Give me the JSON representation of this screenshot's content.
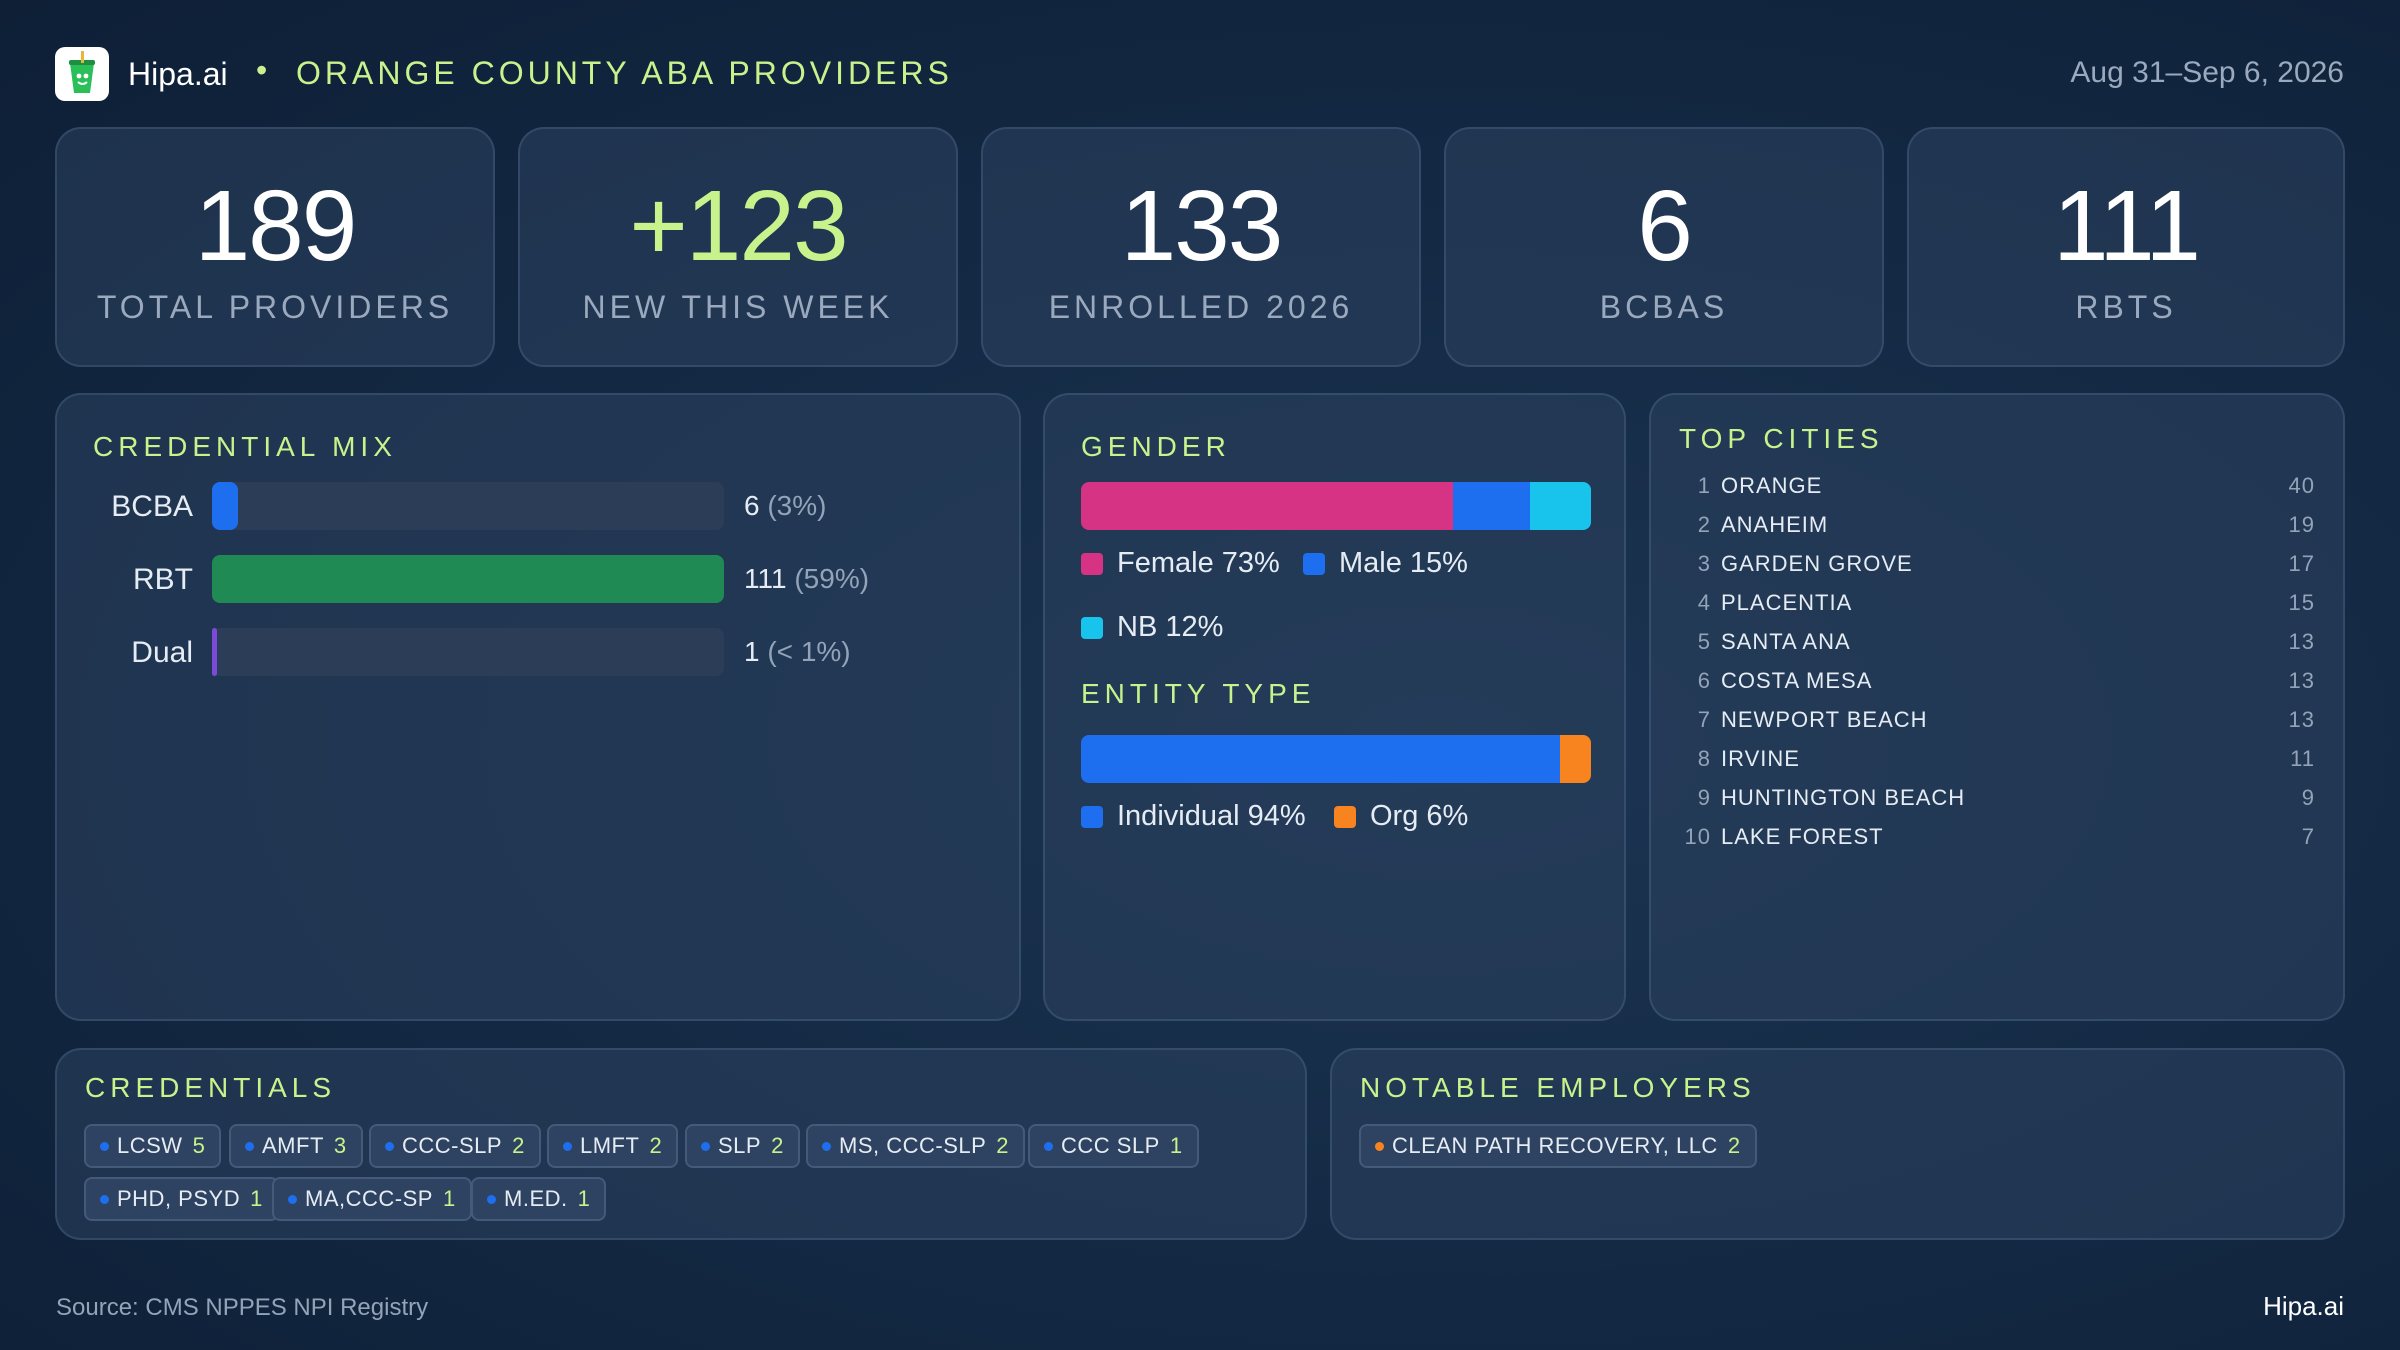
{
  "header": {
    "brand": "Hipa.ai",
    "separator": "•",
    "title": "ORANGE COUNTY ABA PROVIDERS",
    "date_range": "Aug 31–Sep 6, 2026"
  },
  "kpis": [
    {
      "value": "189",
      "label": "TOTAL  PROVIDERS"
    },
    {
      "value": "+123",
      "label": "NEW THIS WEEK"
    },
    {
      "value": "133",
      "label": "ENROLLED 2026"
    },
    {
      "value": "6",
      "label": "BCBAS"
    },
    {
      "value": "111",
      "label": "RBTS"
    }
  ],
  "credential_mix": {
    "title": "CREDENTIAL MIX",
    "rows": [
      {
        "label": "BCBA",
        "count": "6",
        "pct": "(3%)",
        "fraction": 0.05,
        "color": "#1e6ff0"
      },
      {
        "label": "RBT",
        "count": "111",
        "pct": "(59%)",
        "fraction": 1.0,
        "color": "#1f8a54"
      },
      {
        "label": "Dual",
        "count": "1",
        "pct": "(< 1%)",
        "fraction": 0.01,
        "color": "#7b4ad9"
      }
    ]
  },
  "gender": {
    "title": "GENDER",
    "segments": [
      {
        "label": "Female 73%",
        "value": 73,
        "color": "#d63384"
      },
      {
        "label": "Male 15%",
        "value": 15,
        "color": "#1e6ff0"
      },
      {
        "label": "NB 12%",
        "value": 12,
        "color": "#18c4eb"
      }
    ]
  },
  "entity_type": {
    "title": "ENTITY TYPE",
    "segments": [
      {
        "label": "Individual 94%",
        "value": 94,
        "color": "#1e6ff0"
      },
      {
        "label": "Org 6%",
        "value": 6,
        "color": "#f7841e"
      }
    ]
  },
  "top_cities": {
    "title": "TOP CITIES",
    "rows": [
      {
        "rank": "1",
        "name": "ORANGE",
        "count": "40"
      },
      {
        "rank": "2",
        "name": "ANAHEIM",
        "count": "19"
      },
      {
        "rank": "3",
        "name": "GARDEN GROVE",
        "count": "17"
      },
      {
        "rank": "4",
        "name": "PLACENTIA",
        "count": "15"
      },
      {
        "rank": "5",
        "name": "SANTA ANA",
        "count": "13"
      },
      {
        "rank": "6",
        "name": "COSTA MESA",
        "count": "13"
      },
      {
        "rank": "7",
        "name": "NEWPORT BEACH",
        "count": "13"
      },
      {
        "rank": "8",
        "name": "IRVINE",
        "count": "11"
      },
      {
        "rank": "9",
        "name": "HUNTINGTON BEACH",
        "count": "9"
      },
      {
        "rank": "10",
        "name": "LAKE FOREST",
        "count": "7"
      }
    ]
  },
  "credentials": {
    "title": "CREDENTIALS",
    "dot_color": "#1e6ff0",
    "chips": [
      {
        "label": "LCSW",
        "count": "5"
      },
      {
        "label": "AMFT",
        "count": "3"
      },
      {
        "label": "CCC-SLP",
        "count": "2"
      },
      {
        "label": "LMFT",
        "count": "2"
      },
      {
        "label": "SLP",
        "count": "2"
      },
      {
        "label": "MS, CCC-SLP",
        "count": "2"
      },
      {
        "label": "CCC SLP",
        "count": "1"
      },
      {
        "label": "PHD, PSYD",
        "count": "1"
      },
      {
        "label": "MA,CCC-SP",
        "count": "1"
      },
      {
        "label": "M.ED.",
        "count": "1"
      }
    ]
  },
  "notable_employers": {
    "title": "NOTABLE  EMPLOYERS",
    "dot_color": "#f7841e",
    "chips": [
      {
        "label": "CLEAN PATH RECOVERY, LLC",
        "count": "2"
      }
    ]
  },
  "footer": {
    "source": "Source: CMS NPPES NPI Registry",
    "brand": "Hipa.ai"
  },
  "icons": {
    "logo": "green-drink-cup-icon"
  }
}
